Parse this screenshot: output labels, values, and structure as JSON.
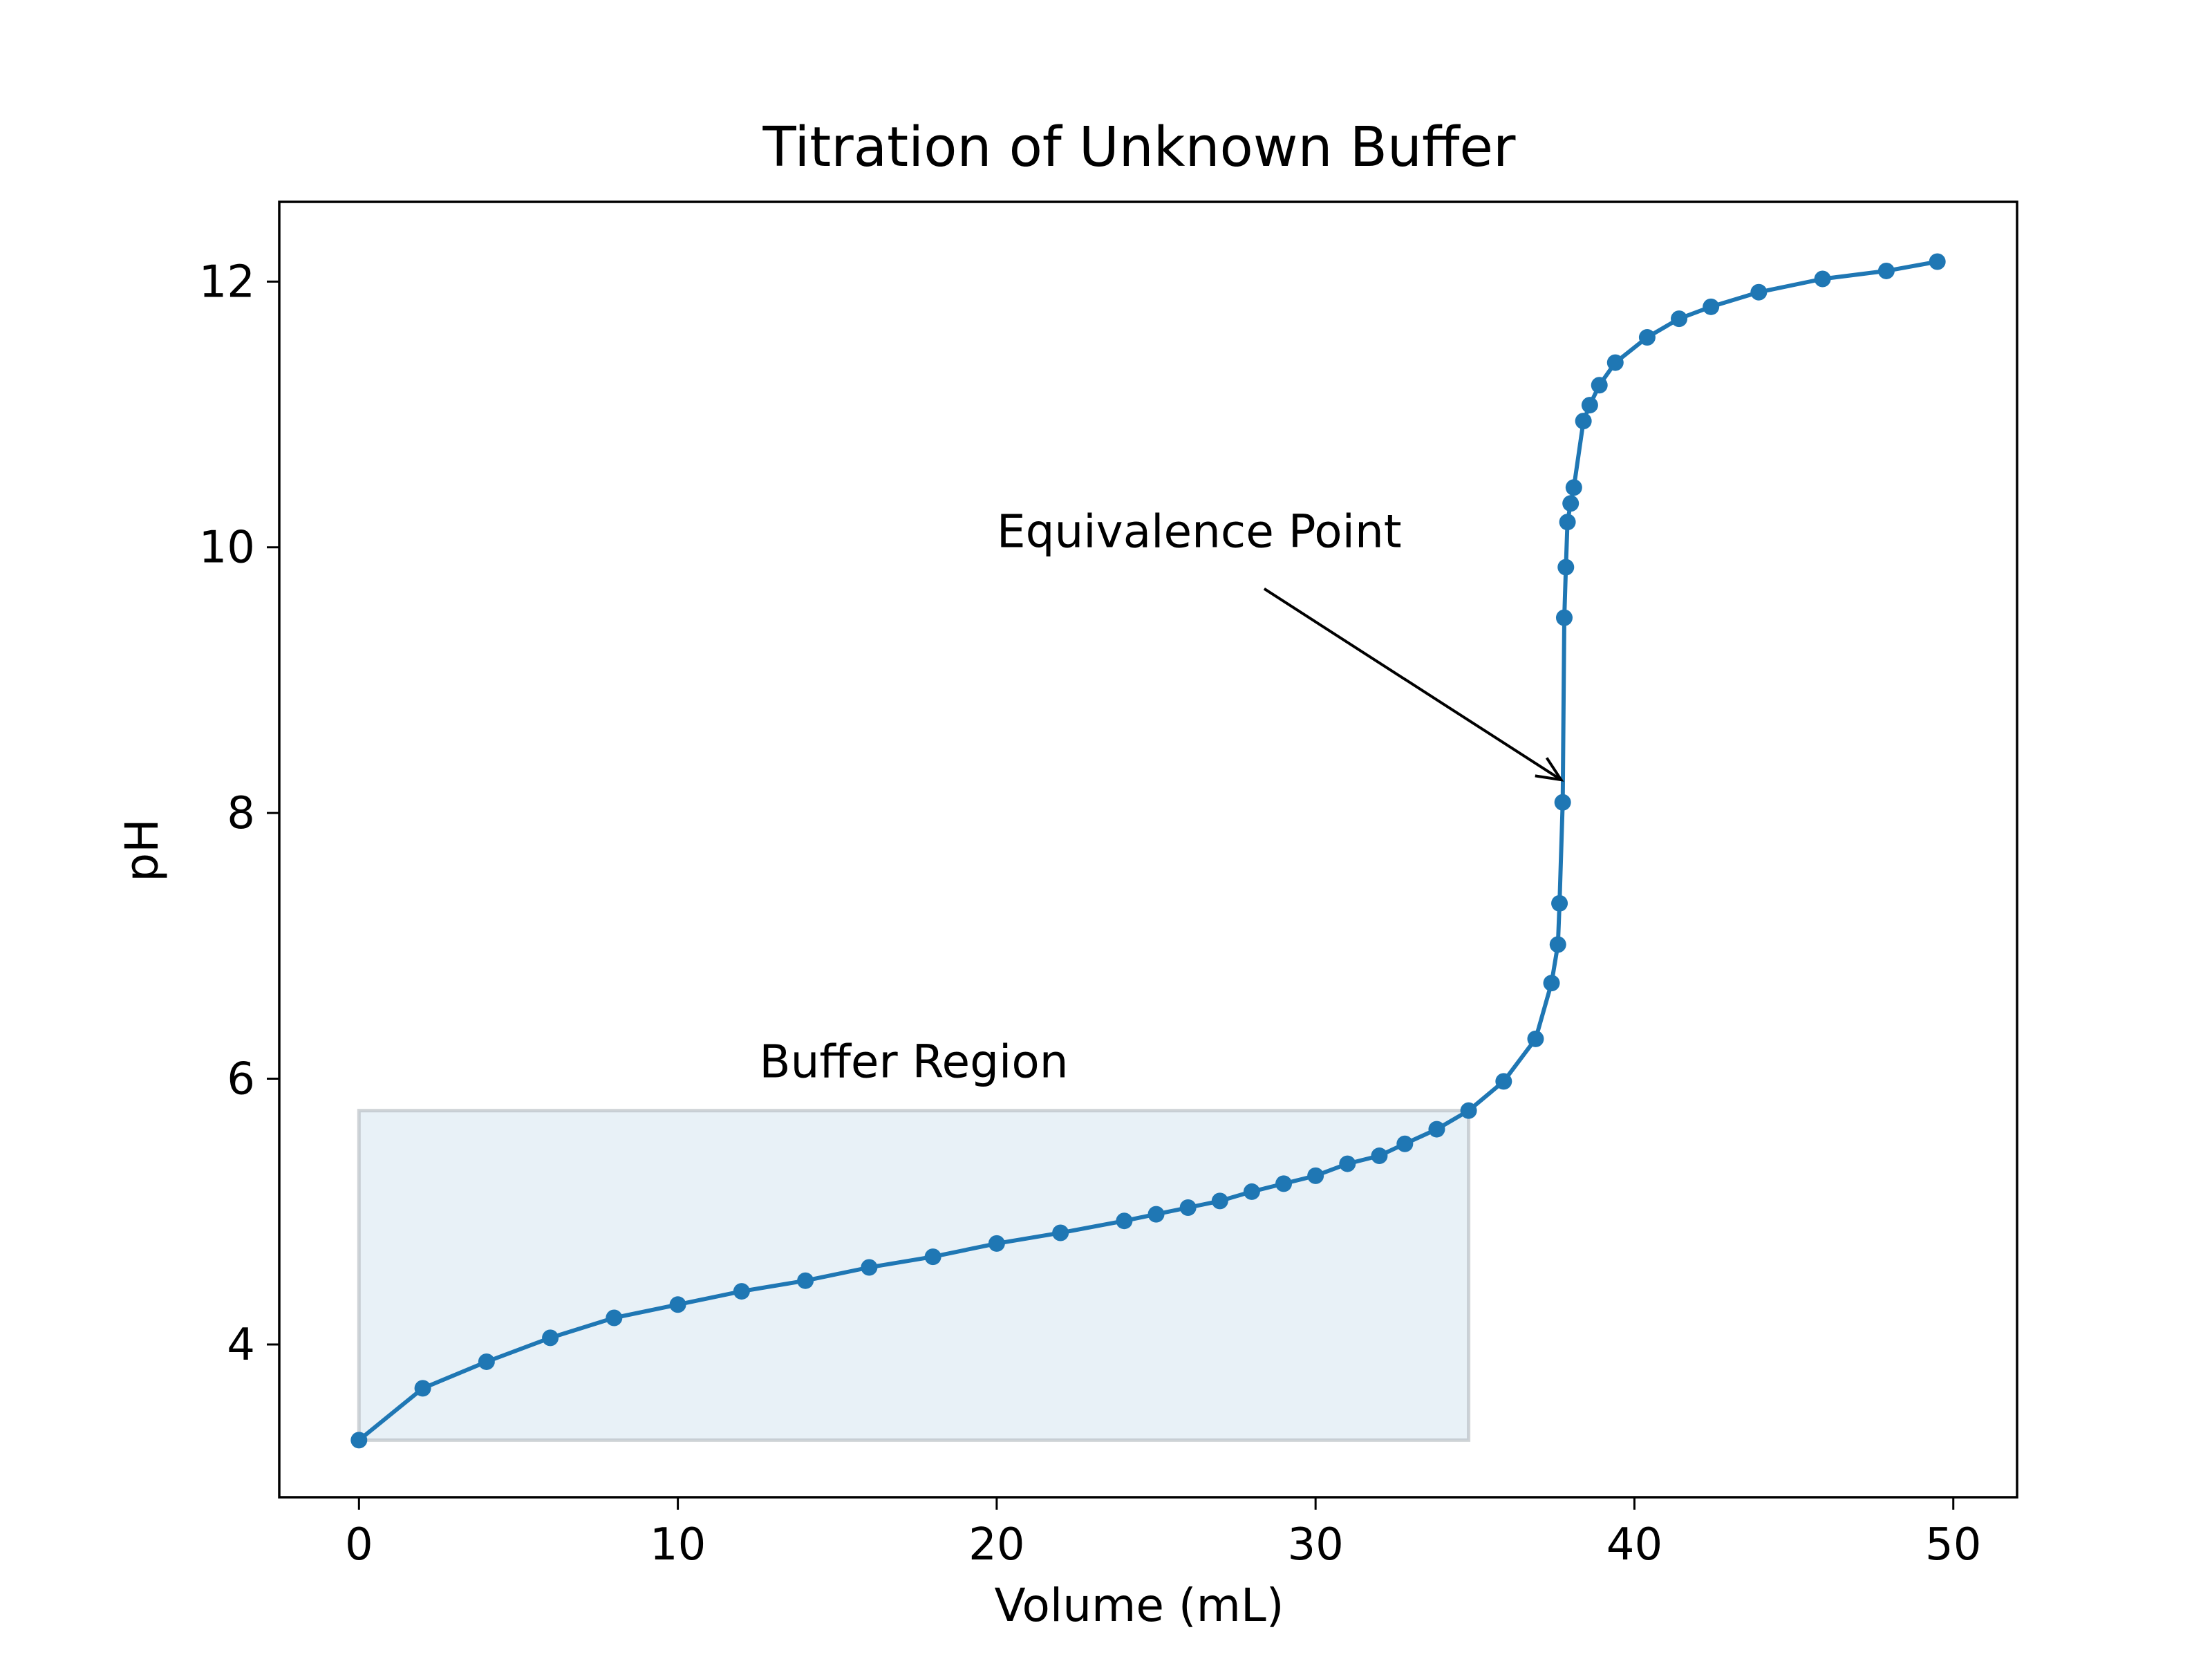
{
  "chart_data": {
    "type": "line",
    "title": "Titration of Unknown Buffer",
    "xlabel": "Volume (mL)",
    "ylabel": "pH",
    "xlim": [
      -2.5,
      52
    ],
    "ylim": [
      2.85,
      12.6
    ],
    "xticks": [
      0,
      10,
      20,
      30,
      40,
      50
    ],
    "yticks": [
      4,
      6,
      8,
      10,
      12
    ],
    "grid": false,
    "colors": {
      "series": "#1f77b4",
      "shade_fill": "#1f77b4",
      "axes": "#000000"
    },
    "series": [
      {
        "marker": "circle",
        "x": [
          0,
          2,
          4,
          6,
          8,
          10,
          12,
          14,
          16,
          18,
          20,
          22,
          24,
          25,
          26,
          27,
          28,
          29,
          30,
          31,
          32,
          32.8,
          33.8,
          34.8,
          35.9,
          36.9,
          37.4,
          37.6,
          37.65,
          37.75,
          37.8,
          37.85,
          37.9,
          38.0,
          38.1,
          38.4,
          38.6,
          38.9,
          39.4,
          40.4,
          41.4,
          42.4,
          43.9,
          45.9,
          47.9,
          49.5
        ],
        "y": [
          3.28,
          3.67,
          3.87,
          4.05,
          4.2,
          4.3,
          4.4,
          4.48,
          4.58,
          4.66,
          4.76,
          4.84,
          4.93,
          4.98,
          5.03,
          5.08,
          5.15,
          5.21,
          5.27,
          5.36,
          5.42,
          5.51,
          5.62,
          5.76,
          5.98,
          6.3,
          6.72,
          7.01,
          7.32,
          8.08,
          9.47,
          9.85,
          10.19,
          10.33,
          10.45,
          10.95,
          11.07,
          11.22,
          11.39,
          11.58,
          11.72,
          11.81,
          11.92,
          12.02,
          12.08,
          12.15
        ]
      }
    ],
    "shaded_regions": [
      {
        "label": "Buffer Region",
        "x": [
          0,
          34.8
        ],
        "y": [
          3.28,
          5.76
        ]
      }
    ],
    "annotations": [
      {
        "text": "Equivalence Point",
        "point": [
          37.7,
          8.25
        ],
        "text_at": [
          20,
          10.0
        ]
      }
    ]
  }
}
